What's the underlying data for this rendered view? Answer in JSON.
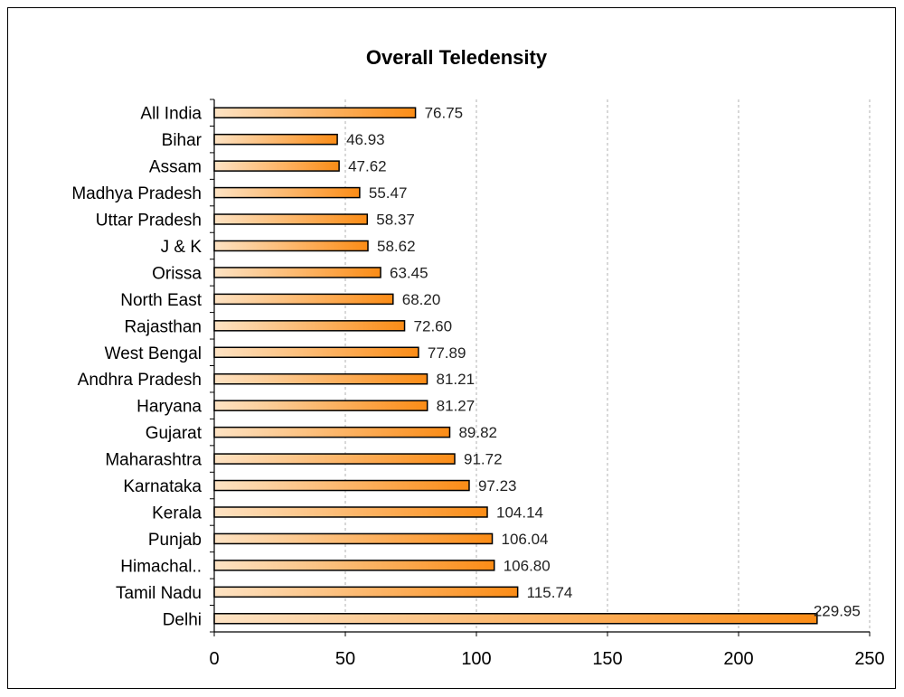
{
  "chart_data": {
    "type": "bar",
    "orientation": "horizontal",
    "title": "Overall Teledensity",
    "categories": [
      "All India",
      "Bihar",
      "Assam",
      "Madhya Pradesh",
      "Uttar Pradesh",
      "J & K",
      "Orissa",
      "North East",
      "Rajasthan",
      "West Bengal",
      "Andhra Pradesh",
      "Haryana",
      "Gujarat",
      "Maharashtra",
      "Karnataka",
      "Kerala",
      "Punjab",
      "Himachal..",
      "Tamil Nadu",
      "Delhi"
    ],
    "values": [
      76.75,
      46.93,
      47.62,
      55.47,
      58.37,
      58.62,
      63.45,
      68.2,
      72.6,
      77.89,
      81.21,
      81.27,
      89.82,
      91.72,
      97.23,
      104.14,
      106.04,
      106.8,
      115.74,
      229.95
    ],
    "value_labels": [
      "76.75",
      "46.93",
      "47.62",
      "55.47",
      "58.37",
      "58.62",
      "63.45",
      "68.20",
      "72.60",
      "77.89",
      "81.21",
      "81.27",
      "89.82",
      "91.72",
      "97.23",
      "104.14",
      "106.04",
      "106.80",
      "115.74",
      "229.95"
    ],
    "xlim": [
      0,
      250
    ],
    "xticks": [
      0,
      50,
      100,
      150,
      200,
      250
    ],
    "xtick_labels": [
      "0",
      "50",
      "100",
      "150",
      "200",
      "250"
    ],
    "grid": "vertical dashed",
    "legend": "none",
    "colors": {
      "bar_light": "#fde3c4",
      "bar_dark": "#fb8c16",
      "bar_border": "#000000",
      "grid": "#b0b0b0"
    }
  }
}
